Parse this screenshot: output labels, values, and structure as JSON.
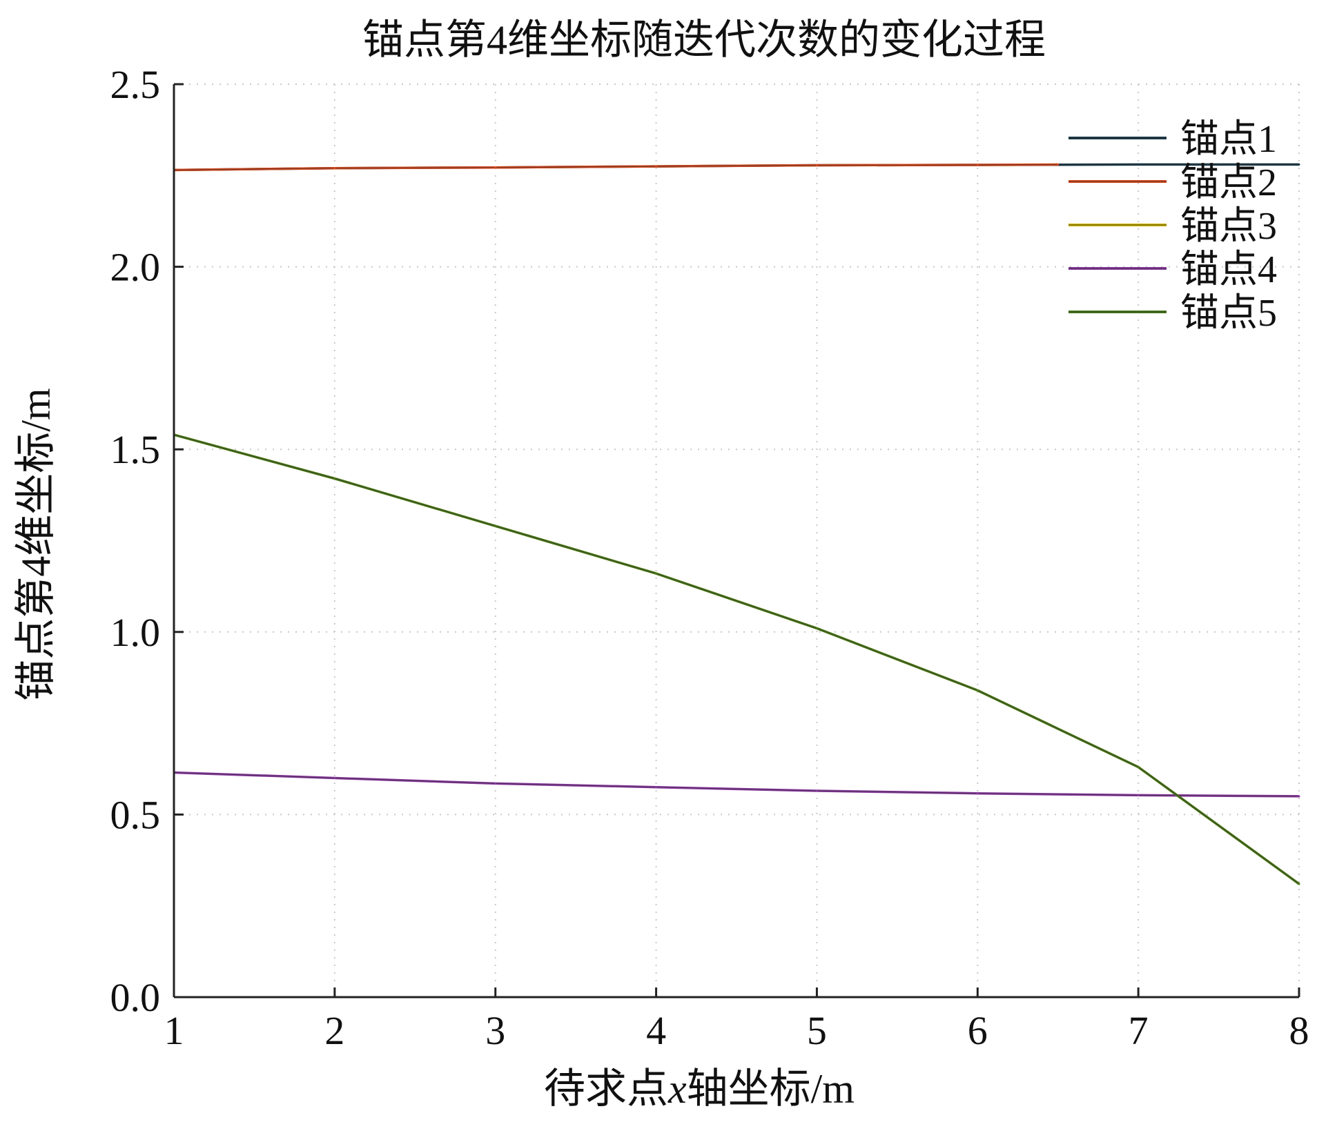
{
  "chart_data": {
    "type": "line",
    "title": "锚点第4维坐标随迭代次数的变化过程",
    "xlabel_main": "待求点",
    "xlabel_var": "x",
    "xlabel_rest": "轴坐标/m",
    "ylabel": "锚点第4维坐标/m",
    "xlim": [
      1,
      8
    ],
    "ylim": [
      0,
      2.5
    ],
    "x_ticks": [
      "1",
      "2",
      "3",
      "4",
      "5",
      "6",
      "7",
      "8"
    ],
    "y_ticks": [
      "0.0",
      "0.5",
      "1.0",
      "1.5",
      "2.0",
      "2.5"
    ],
    "grid": true,
    "legend_position": "top-right",
    "series": [
      {
        "name": "锚点1",
        "color": "#1b3a4a",
        "x": [
          1,
          2,
          3,
          4,
          5,
          6,
          7,
          8
        ],
        "y": [
          2.265,
          2.27,
          2.272,
          2.275,
          2.278,
          2.279,
          2.28,
          2.28
        ]
      },
      {
        "name": "锚点2",
        "color": "#d94a1e",
        "x": [
          1,
          2,
          3,
          4,
          5,
          6,
          6.5
        ],
        "y": [
          2.265,
          2.27,
          2.272,
          2.275,
          2.278,
          2.279,
          2.28
        ]
      },
      {
        "name": "锚点3",
        "color": "#c9b000",
        "x": [
          1,
          2,
          3,
          4,
          5,
          6,
          7,
          8
        ],
        "y": [
          1.54,
          1.42,
          1.29,
          1.16,
          1.01,
          0.84,
          0.63,
          0.31
        ]
      },
      {
        "name": "锚点4",
        "color": "#8a3aa0",
        "x": [
          1,
          2,
          3,
          4,
          5,
          6,
          7,
          8
        ],
        "y": [
          0.615,
          0.6,
          0.585,
          0.575,
          0.565,
          0.558,
          0.553,
          0.55
        ]
      },
      {
        "name": "锚点5",
        "color": "#4a7a1c",
        "x": [
          1,
          2,
          3,
          4,
          5,
          6,
          7,
          8
        ],
        "y": [
          1.54,
          1.42,
          1.29,
          1.16,
          1.01,
          0.84,
          0.63,
          0.31
        ]
      }
    ]
  }
}
